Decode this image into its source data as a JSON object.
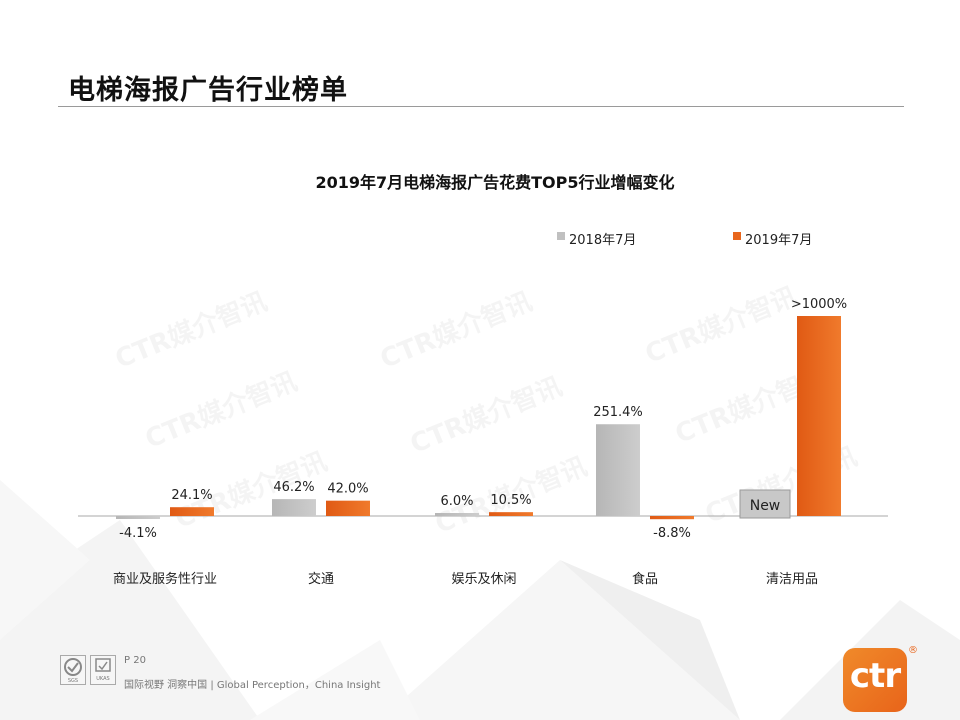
{
  "page": {
    "title": "电梯海报广告行业榜单",
    "page_number": "P 20",
    "footer": "国际视野 洞察中国 | Global Perception，China Insight",
    "logo_text": "ctr",
    "logo_mark": "®",
    "watermark": "CTR媒介智讯",
    "cert_text": [
      "SGS",
      "UKAS"
    ]
  },
  "colors": {
    "series_2018": "#c0c0c0",
    "series_2019": "#e8661c",
    "brand_orange": "#e8641a"
  },
  "chart_data": {
    "type": "bar",
    "title": "2019年7月电梯海报广告花费TOP5行业增幅变化",
    "categories": [
      "商业及服务性行业",
      "交通",
      "娱乐及休闲",
      "食品",
      "清洁用品"
    ],
    "series": [
      {
        "name": "2018年7月",
        "values": [
          -4.1,
          46.2,
          6.0,
          251.4,
          null
        ],
        "labels": [
          "-4.1%",
          "46.2%",
          "6.0%",
          "251.4%",
          "New"
        ]
      },
      {
        "name": "2019年7月",
        "values": [
          24.1,
          42.0,
          10.5,
          -8.8,
          1000
        ],
        "labels": [
          "24.1%",
          "42.0%",
          "10.5%",
          "-8.8%",
          ">1000%"
        ]
      }
    ],
    "legend_position": "top-right",
    "xlabel": "",
    "ylabel": "",
    "grid": false,
    "note": "Values are growth rates in %; the >1000% bar is drawn on a broken scale"
  }
}
